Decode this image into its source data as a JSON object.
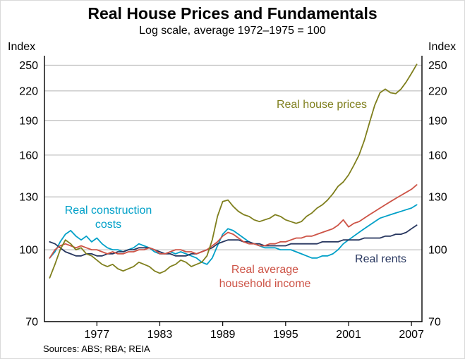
{
  "page": {
    "title": "Real House Prices and Fundamentals",
    "subtitle": "Log scale, average 1972–1975 = 100",
    "index_label": "Index",
    "sources": "Sources: ABS; RBA; REIA"
  },
  "chart_data": {
    "type": "line",
    "title": "Real House Prices and Fundamentals",
    "subtitle": "Log scale, average 1972–1975 = 100",
    "y_scale": "log",
    "grid": "horizontal",
    "ylim": [
      70,
      262
    ],
    "xlim": [
      1972,
      2008
    ],
    "y_ticks": [
      70,
      100,
      130,
      160,
      190,
      220,
      250
    ],
    "x_ticks": [
      1977,
      1983,
      1989,
      1995,
      2001,
      2007
    ],
    "x_start": 1972.5,
    "x_step": 0.5,
    "series": [
      {
        "name": "Real construction costs",
        "color": "#00a0c8",
        "values": [
          96,
          99,
          104,
          108,
          110,
          107,
          105,
          107,
          104,
          106,
          103,
          101,
          100,
          100,
          99,
          100,
          101,
          103,
          102,
          101,
          99,
          98,
          98,
          99,
          98,
          99,
          98,
          97,
          96,
          94,
          93,
          96,
          102,
          108,
          111,
          110,
          108,
          106,
          104,
          103,
          102,
          101,
          101,
          101,
          100,
          100,
          100,
          99,
          98,
          97,
          96,
          96,
          97,
          97,
          98,
          100,
          103,
          105,
          107,
          109,
          111,
          113,
          115,
          117,
          118,
          119,
          120,
          121,
          122,
          123,
          125
        ]
      },
      {
        "name": "Real rents",
        "color": "#27365f",
        "values": [
          104,
          103,
          101,
          99,
          98,
          97,
          97,
          98,
          98,
          97,
          97,
          98,
          98,
          99,
          99,
          100,
          100,
          101,
          101,
          101,
          100,
          99,
          98,
          98,
          97,
          97,
          97,
          98,
          98,
          99,
          100,
          101,
          103,
          104,
          105,
          105,
          105,
          104,
          104,
          103,
          103,
          102,
          102,
          102,
          102,
          102,
          103,
          103,
          103,
          103,
          103,
          103,
          104,
          104,
          104,
          104,
          105,
          105,
          105,
          105,
          106,
          106,
          106,
          106,
          107,
          107,
          108,
          108,
          109,
          111,
          113
        ]
      },
      {
        "name": "Real average household income",
        "color": "#cd5346",
        "values": [
          96,
          100,
          102,
          103,
          102,
          101,
          102,
          101,
          100,
          100,
          99,
          98,
          99,
          98,
          98,
          99,
          99,
          100,
          100,
          101,
          100,
          98,
          98,
          99,
          100,
          100,
          99,
          99,
          98,
          99,
          100,
          102,
          104,
          107,
          109,
          108,
          106,
          104,
          103,
          103,
          102,
          102,
          103,
          103,
          104,
          104,
          105,
          106,
          106,
          107,
          107,
          108,
          109,
          110,
          111,
          113,
          116,
          112,
          114,
          115,
          117,
          119,
          121,
          123,
          125,
          127,
          129,
          131,
          133,
          135,
          138
        ]
      },
      {
        "name": "Real house prices",
        "color": "#7f7f1d",
        "values": [
          87,
          93,
          100,
          105,
          103,
          100,
          101,
          98,
          97,
          95,
          93,
          92,
          93,
          91,
          90,
          91,
          92,
          94,
          93,
          92,
          90,
          89,
          90,
          92,
          93,
          95,
          94,
          92,
          93,
          94,
          97,
          105,
          118,
          127,
          128,
          124,
          121,
          119,
          118,
          116,
          115,
          116,
          117,
          119,
          118,
          116,
          115,
          114,
          115,
          118,
          120,
          123,
          125,
          128,
          132,
          137,
          140,
          145,
          152,
          160,
          172,
          188,
          205,
          218,
          222,
          218,
          217,
          222,
          230,
          240,
          251
        ]
      }
    ],
    "annotations": {
      "house_prices": {
        "text": "Real house prices"
      },
      "construction": {
        "line1": "Real construction",
        "line2": "costs"
      },
      "income": {
        "line1": "Real average",
        "line2": "household income"
      },
      "rents": {
        "text": "Real rents"
      }
    }
  }
}
